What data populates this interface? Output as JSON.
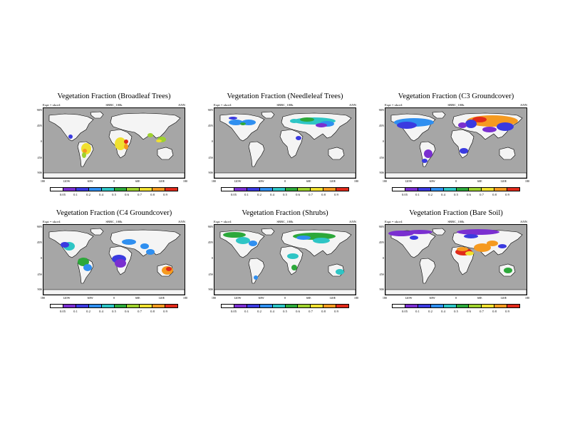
{
  "figure": {
    "expt_label": "Expt = xkce4",
    "source_label": "SBBC_100k",
    "season_label": "ANN",
    "lat_ticks": [
      "90N",
      "45N",
      "0",
      "45S",
      "90S"
    ],
    "lon_ticks": [
      "180",
      "120W",
      "60W",
      "0",
      "60E",
      "120E",
      "180"
    ],
    "colorbar_labels": [
      "0.05",
      "0.1",
      "0.2",
      "0.4",
      "0.5",
      "0.6",
      "0.7",
      "0.8",
      "0.9"
    ],
    "colorbar_colors": [
      "#ffffff",
      "#7a2fd0",
      "#3a3ae0",
      "#2f8ff0",
      "#2ec5c5",
      "#2ca83a",
      "#9fd22e",
      "#f0e030",
      "#f59a20",
      "#e02a1a"
    ],
    "ocean_color": "#a6a6a6",
    "land_color": "#f4f4f4"
  },
  "panels": [
    {
      "title": "Vegetation Fraction (Broadleaf Trees)"
    },
    {
      "title": "Vegetation Fraction (Needleleaf Trees)"
    },
    {
      "title": "Vegetation Fraction (C3 Groundcover)"
    },
    {
      "title": "Vegetation Fraction (C4 Groundcover)"
    },
    {
      "title": "Vegetation Fraction (Shrubs)"
    },
    {
      "title": "Vegetation Fraction (Bare Soil)"
    }
  ]
}
